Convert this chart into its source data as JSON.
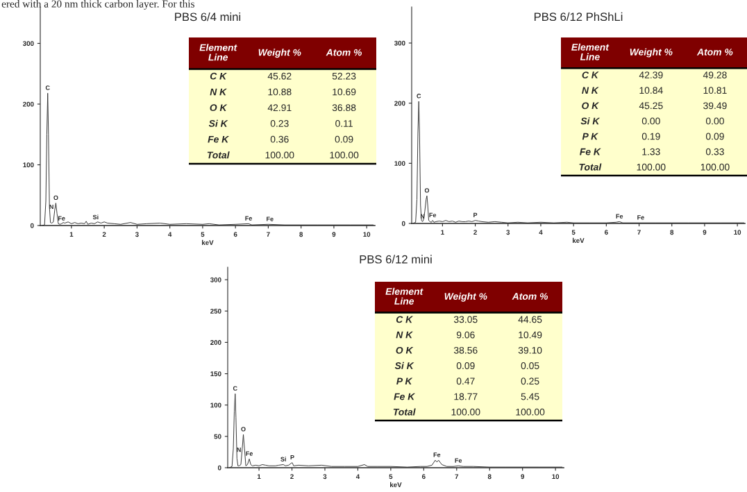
{
  "chart_data": [
    {
      "type": "line",
      "title": "PBS 6/4 mini",
      "xlabel": "keV",
      "xlim": [
        0.05,
        10.25
      ],
      "xticks": [
        1,
        2,
        3,
        4,
        5,
        6,
        7,
        8,
        9,
        10
      ],
      "ylim": [
        0,
        360
      ],
      "yticks": [
        0,
        100,
        200,
        300
      ],
      "grid": false,
      "marker": "none",
      "line_style": "solid",
      "series": [
        {
          "color": "#333333",
          "x": [
            0.1,
            0.18,
            0.22,
            0.25,
            0.277,
            0.3,
            0.33,
            0.36,
            0.4,
            0.45,
            0.49,
            0.525,
            0.56,
            0.6,
            0.65,
            0.7,
            0.75,
            0.8,
            0.9,
            1.0,
            1.1,
            1.2,
            1.3,
            1.4,
            1.45,
            1.5,
            1.6,
            1.7,
            1.8,
            1.9,
            2.0,
            2.1,
            2.3,
            2.5,
            2.8,
            3.0,
            3.3,
            3.7,
            4.0,
            4.5,
            5.0,
            5.2,
            5.5,
            6.0,
            6.4,
            6.5,
            7.0,
            7.5,
            8.0,
            8.5,
            9.0,
            9.5,
            10.0,
            10.2
          ],
          "values": [
            0,
            1,
            40,
            150,
            218,
            150,
            30,
            5,
            4,
            6,
            25,
            37,
            20,
            3,
            2,
            3,
            5,
            4,
            6,
            3,
            5,
            3,
            4,
            3,
            7,
            2,
            4,
            3,
            6,
            4,
            6,
            4,
            3,
            2,
            5,
            2,
            3,
            4,
            2,
            3,
            2,
            3,
            1,
            2,
            3,
            1,
            2,
            1,
            1,
            1,
            1,
            1,
            1,
            1
          ]
        }
      ],
      "annotations": [
        "ered with a 20 nm thick carbon layer. For this",
        {
          "text": "C",
          "x": 0.277,
          "y": 218
        },
        {
          "text": "N",
          "x": 0.39,
          "y": 22
        },
        {
          "text": "O",
          "x": 0.525,
          "y": 37
        },
        {
          "text": "Fe",
          "x": 0.7,
          "y": 3
        },
        {
          "text": "Si",
          "x": 1.74,
          "y": 5
        },
        {
          "text": "Fe",
          "x": 6.4,
          "y": 3
        },
        {
          "text": "Fe",
          "x": 7.05,
          "y": 2
        }
      ]
    },
    {
      "type": "other",
      "categories": [
        "C K",
        "N K",
        "O K",
        "Si K",
        "Fe K",
        "Total"
      ],
      "annotations": [
        "Element\nLine"
      ],
      "series": [
        {
          "name": "Weight %",
          "values": [
            45.62,
            10.88,
            42.91,
            0.23,
            0.36,
            100
          ],
          "value_labels": [
            "45.62",
            "10.88",
            "42.91",
            "0.23",
            "0.36",
            "100.00"
          ]
        },
        {
          "name": "Atom %",
          "values": [
            52.23,
            10.69,
            36.88,
            0.11,
            0.09,
            100
          ],
          "value_labels": [
            "52.23",
            "10.69",
            "36.88",
            "0.11",
            "0.09",
            "100.00"
          ]
        }
      ]
    },
    {
      "type": "line",
      "title": "PBS 6/12 PhShLi",
      "xlabel": "keV",
      "xlim": [
        0.06,
        10.23
      ],
      "xticks": [
        1,
        2,
        3,
        4,
        5,
        6,
        7,
        8,
        9,
        10
      ],
      "ylim": [
        0,
        360
      ],
      "yticks": [
        0,
        100,
        200,
        300
      ],
      "grid": false,
      "marker": "none",
      "line_style": "solid",
      "series": [
        {
          "color": "#333333",
          "x": [
            0.1,
            0.18,
            0.22,
            0.25,
            0.277,
            0.3,
            0.33,
            0.36,
            0.39,
            0.42,
            0.46,
            0.5,
            0.525,
            0.55,
            0.58,
            0.62,
            0.66,
            0.7,
            0.74,
            0.8,
            0.9,
            1.0,
            1.1,
            1.2,
            1.3,
            1.4,
            1.5,
            1.6,
            1.7,
            1.8,
            1.9,
            2.0,
            2.1,
            2.2,
            2.4,
            2.6,
            2.8,
            3.0,
            3.3,
            3.6,
            4.0,
            4.4,
            4.8,
            5.0,
            5.5,
            6.0,
            6.3,
            6.4,
            6.5,
            7.0,
            7.5,
            8.0,
            8.5,
            9.0,
            9.5,
            10.0,
            10.2
          ],
          "values": [
            0,
            2,
            40,
            150,
            203,
            150,
            30,
            5,
            3,
            6,
            20,
            40,
            46,
            30,
            5,
            3,
            2,
            5,
            2,
            3,
            4,
            3,
            5,
            3,
            4,
            2,
            4,
            3,
            3,
            4,
            3,
            5,
            4,
            3,
            2,
            3,
            2,
            1,
            2,
            1,
            2,
            1,
            2,
            1,
            1,
            1,
            2,
            3,
            1,
            1,
            1,
            1,
            1,
            1,
            1,
            1,
            1
          ]
        }
      ],
      "annotations": [
        {
          "text": "C",
          "x": 0.277,
          "y": 203
        },
        {
          "text": "N",
          "x": 0.39,
          "y": 3
        },
        {
          "text": "O",
          "x": 0.525,
          "y": 46
        },
        {
          "text": "Fe",
          "x": 0.7,
          "y": 5
        },
        {
          "text": "P",
          "x": 2.0,
          "y": 5
        },
        {
          "text": "Fe",
          "x": 6.4,
          "y": 3
        },
        {
          "text": "Fe",
          "x": 7.05,
          "y": 1
        }
      ]
    },
    {
      "type": "other",
      "categories": [
        "C K",
        "N K",
        "O K",
        "Si K",
        "P K",
        "Fe K",
        "Total"
      ],
      "annotations": [
        "Element\nLine"
      ],
      "series": [
        {
          "name": "Weight %",
          "values": [
            42.39,
            10.84,
            45.25,
            0,
            0.19,
            1.33,
            100
          ],
          "value_labels": [
            "42.39",
            "10.84",
            "45.25",
            "0.00",
            "0.19",
            "1.33",
            "100.00"
          ]
        },
        {
          "name": "Atom %",
          "values": [
            49.28,
            10.81,
            39.49,
            0,
            0.09,
            0.33,
            100
          ],
          "value_labels": [
            "49.28",
            "10.81",
            "39.49",
            "0.00",
            "0.09",
            "0.33",
            "100.00"
          ]
        }
      ]
    },
    {
      "type": "line",
      "title": "PBS 6/12 mini",
      "xlabel": "keV",
      "xlim": [
        0.05,
        10.25
      ],
      "xticks": [
        1,
        2,
        3,
        4,
        5,
        6,
        7,
        8,
        9,
        10
      ],
      "ylim": [
        0,
        320
      ],
      "yticks": [
        0,
        50,
        100,
        150,
        200,
        250,
        300
      ],
      "grid": false,
      "marker": "none",
      "line_style": "solid",
      "series": [
        {
          "color": "#333333",
          "x": [
            0.1,
            0.18,
            0.22,
            0.25,
            0.277,
            0.3,
            0.33,
            0.36,
            0.4,
            0.45,
            0.49,
            0.525,
            0.56,
            0.6,
            0.65,
            0.705,
            0.75,
            0.8,
            0.9,
            1.0,
            1.1,
            1.2,
            1.3,
            1.5,
            1.6,
            1.74,
            1.8,
            1.9,
            2.0,
            2.01,
            2.05,
            2.2,
            2.5,
            2.9,
            3.2,
            3.6,
            4.0,
            4.2,
            4.3,
            4.6,
            5.0,
            5.5,
            5.9,
            6.1,
            6.25,
            6.35,
            6.4,
            6.45,
            6.55,
            6.7,
            6.9,
            7.05,
            7.2,
            7.5,
            8.0,
            8.5,
            9.0,
            9.5,
            10.0,
            10.2
          ],
          "values": [
            0,
            2,
            30,
            90,
            118,
            80,
            15,
            3,
            3,
            5,
            30,
            53,
            30,
            3,
            5,
            14,
            5,
            3,
            4,
            3,
            5,
            4,
            3,
            3,
            4,
            5,
            3,
            4,
            8,
            8,
            3,
            4,
            3,
            4,
            2,
            2,
            2,
            5,
            2,
            2,
            2,
            1,
            2,
            2,
            4,
            12,
            9,
            12,
            5,
            2,
            2,
            3,
            2,
            2,
            1,
            1,
            1,
            1,
            1,
            1
          ]
        }
      ],
      "annotations": [
        {
          "text": "C",
          "x": 0.277,
          "y": 118
        },
        {
          "text": "N",
          "x": 0.39,
          "y": 20
        },
        {
          "text": "O",
          "x": 0.525,
          "y": 53
        },
        {
          "text": "Fe",
          "x": 0.705,
          "y": 14
        },
        {
          "text": "Si",
          "x": 1.74,
          "y": 5
        },
        {
          "text": "P",
          "x": 2.01,
          "y": 8
        },
        {
          "text": "Fe",
          "x": 6.4,
          "y": 12
        },
        {
          "text": "Fe",
          "x": 7.05,
          "y": 3
        }
      ]
    },
    {
      "type": "other",
      "categories": [
        "C K",
        "N K",
        "O K",
        "Si K",
        "P K",
        "Fe K",
        "Total"
      ],
      "annotations": [
        "Element\nLine"
      ],
      "series": [
        {
          "name": "Weight %",
          "values": [
            33.05,
            9.06,
            38.56,
            0.09,
            0.47,
            18.77,
            100
          ],
          "value_labels": [
            "33.05",
            "9.06",
            "38.56",
            "0.09",
            "0.47",
            "18.77",
            "100.00"
          ]
        },
        {
          "name": "Atom %",
          "values": [
            44.65,
            10.49,
            39.1,
            0.05,
            0.25,
            5.45,
            100
          ],
          "value_labels": [
            "44.65",
            "10.49",
            "39.10",
            "0.05",
            "0.25",
            "5.45",
            "100.00"
          ]
        }
      ]
    }
  ]
}
